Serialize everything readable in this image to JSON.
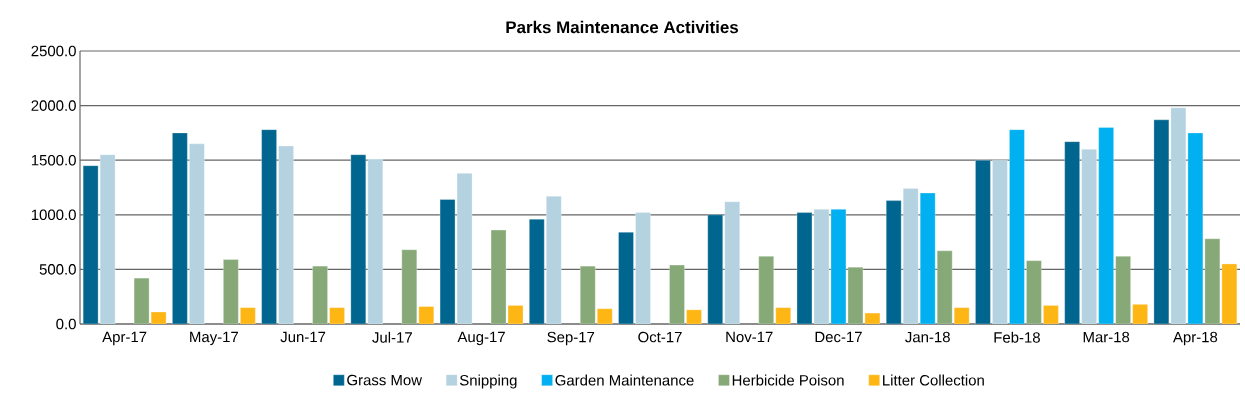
{
  "chart_data": {
    "type": "bar",
    "title": "Parks Maintenance Activities",
    "categories": [
      "Apr-17",
      "May-17",
      "Jun-17",
      "Jul-17",
      "Aug-17",
      "Sep-17",
      "Oct-17",
      "Nov-17",
      "Dec-17",
      "Jan-18",
      "Feb-18",
      "Mar-18",
      "Apr-18"
    ],
    "series": [
      {
        "name": "Grass Mow",
        "color": "#00668f",
        "values": [
          1450,
          1750,
          1780,
          1550,
          1140,
          960,
          840,
          1000,
          1020,
          1130,
          1500,
          1670,
          1870
        ]
      },
      {
        "name": "Snipping",
        "color": "#b4d2e0",
        "values": [
          1550,
          1650,
          1630,
          1510,
          1380,
          1170,
          1020,
          1120,
          1050,
          1240,
          1500,
          1600,
          1980
        ]
      },
      {
        "name": "Garden Maintenance",
        "color": "#00b0f0",
        "values": [
          null,
          null,
          null,
          null,
          null,
          null,
          null,
          null,
          1050,
          1200,
          1780,
          1800,
          1750
        ]
      },
      {
        "name": "Herbicide Poison",
        "color": "#86a977",
        "values": [
          420,
          590,
          530,
          680,
          860,
          530,
          540,
          620,
          520,
          670,
          580,
          620,
          780
        ]
      },
      {
        "name": "Litter Collection",
        "color": "#fdb614",
        "values": [
          110,
          150,
          150,
          160,
          170,
          140,
          130,
          150,
          100,
          150,
          170,
          180,
          550
        ]
      }
    ],
    "ylim": [
      0,
      2500
    ],
    "yticks": [
      {
        "value": 0,
        "label": "0.0"
      },
      {
        "value": 500,
        "label": "500.0"
      },
      {
        "value": 1000,
        "label": "1000.0"
      },
      {
        "value": 1500,
        "label": "1500.0"
      },
      {
        "value": 2000,
        "label": "2000.0"
      },
      {
        "value": 2500,
        "label": "2500.0"
      }
    ],
    "grid": "y",
    "legend": "bottom"
  }
}
